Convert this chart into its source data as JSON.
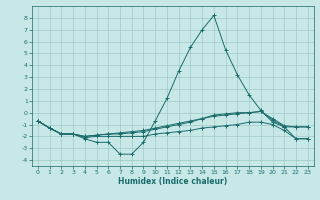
{
  "title": "",
  "xlabel": "Humidex (Indice chaleur)",
  "background_color": "#c8e8e8",
  "grid_color": "#a0c8c8",
  "line_color": "#1a6b6b",
  "xlim": [
    -0.5,
    23.5
  ],
  "ylim": [
    -4.5,
    9.0
  ],
  "xticks": [
    0,
    1,
    2,
    3,
    4,
    5,
    6,
    7,
    8,
    9,
    10,
    11,
    12,
    13,
    14,
    15,
    16,
    17,
    18,
    19,
    20,
    21,
    22,
    23
  ],
  "yticks": [
    -4,
    -3,
    -2,
    -1,
    0,
    1,
    2,
    3,
    4,
    5,
    6,
    7,
    8
  ],
  "series1": [
    [
      0,
      -0.7
    ],
    [
      1,
      -1.3
    ],
    [
      2,
      -1.8
    ],
    [
      3,
      -1.8
    ],
    [
      4,
      -2.2
    ],
    [
      5,
      -2.5
    ],
    [
      6,
      -2.5
    ],
    [
      7,
      -3.5
    ],
    [
      8,
      -3.5
    ],
    [
      9,
      -2.5
    ],
    [
      10,
      -0.7
    ],
    [
      11,
      1.2
    ],
    [
      12,
      3.5
    ],
    [
      13,
      5.5
    ],
    [
      14,
      7.0
    ],
    [
      15,
      8.2
    ],
    [
      16,
      5.3
    ],
    [
      17,
      3.2
    ],
    [
      18,
      1.5
    ],
    [
      19,
      0.2
    ],
    [
      20,
      -0.8
    ],
    [
      21,
      -1.2
    ],
    [
      22,
      -1.2
    ],
    [
      23,
      -1.2
    ]
  ],
  "series2": [
    [
      0,
      -0.7
    ],
    [
      1,
      -1.3
    ],
    [
      2,
      -1.8
    ],
    [
      3,
      -1.8
    ],
    [
      4,
      -2.0
    ],
    [
      5,
      -1.9
    ],
    [
      6,
      -1.8
    ],
    [
      7,
      -1.7
    ],
    [
      8,
      -1.6
    ],
    [
      9,
      -1.5
    ],
    [
      10,
      -1.3
    ],
    [
      11,
      -1.1
    ],
    [
      12,
      -0.9
    ],
    [
      13,
      -0.7
    ],
    [
      14,
      -0.5
    ],
    [
      15,
      -0.3
    ],
    [
      16,
      -0.2
    ],
    [
      17,
      -0.1
    ],
    [
      18,
      0.0
    ],
    [
      19,
      0.1
    ],
    [
      20,
      -0.5
    ],
    [
      21,
      -1.1
    ],
    [
      22,
      -1.2
    ],
    [
      23,
      -1.2
    ]
  ],
  "series3": [
    [
      0,
      -0.7
    ],
    [
      1,
      -1.3
    ],
    [
      2,
      -1.8
    ],
    [
      3,
      -1.8
    ],
    [
      4,
      -2.0
    ],
    [
      5,
      -1.9
    ],
    [
      6,
      -1.8
    ],
    [
      7,
      -1.8
    ],
    [
      8,
      -1.7
    ],
    [
      9,
      -1.6
    ],
    [
      10,
      -1.4
    ],
    [
      11,
      -1.2
    ],
    [
      12,
      -1.0
    ],
    [
      13,
      -0.8
    ],
    [
      14,
      -0.5
    ],
    [
      15,
      -0.2
    ],
    [
      16,
      -0.1
    ],
    [
      17,
      0.0
    ],
    [
      18,
      0.0
    ],
    [
      19,
      0.1
    ],
    [
      20,
      -0.6
    ],
    [
      21,
      -1.2
    ],
    [
      22,
      -2.2
    ],
    [
      23,
      -2.2
    ]
  ],
  "series4": [
    [
      0,
      -0.7
    ],
    [
      1,
      -1.3
    ],
    [
      2,
      -1.8
    ],
    [
      3,
      -1.8
    ],
    [
      4,
      -2.1
    ],
    [
      5,
      -2.0
    ],
    [
      6,
      -2.0
    ],
    [
      7,
      -2.0
    ],
    [
      8,
      -2.0
    ],
    [
      9,
      -2.0
    ],
    [
      10,
      -1.8
    ],
    [
      11,
      -1.7
    ],
    [
      12,
      -1.6
    ],
    [
      13,
      -1.5
    ],
    [
      14,
      -1.3
    ],
    [
      15,
      -1.2
    ],
    [
      16,
      -1.1
    ],
    [
      17,
      -1.0
    ],
    [
      18,
      -0.8
    ],
    [
      19,
      -0.8
    ],
    [
      20,
      -1.0
    ],
    [
      21,
      -1.5
    ],
    [
      22,
      -2.2
    ],
    [
      23,
      -2.2
    ]
  ]
}
